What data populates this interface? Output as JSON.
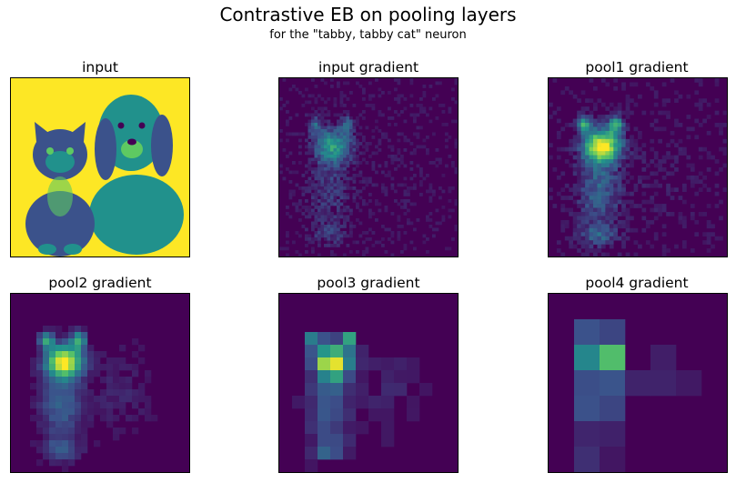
{
  "figure": {
    "title": "Contrastive EB on pooling layers",
    "subtitle": "for the \"tabby, tabby cat\" neuron"
  },
  "panels": [
    {
      "label": "input",
      "kind": "photo"
    },
    {
      "label": "input gradient",
      "kind": "heatmap",
      "level": 0
    },
    {
      "label": "pool1 gradient",
      "kind": "heatmap",
      "level": 1
    },
    {
      "label": "pool2 gradient",
      "kind": "heatmap",
      "level": 2
    },
    {
      "label": "pool3 gradient",
      "kind": "heatmap",
      "level": 3
    },
    {
      "label": "pool4 gradient",
      "kind": "heatmap",
      "level": 4
    }
  ],
  "colormap": {
    "name": "viridis",
    "background": "#440154",
    "stops": [
      "#440154",
      "#3b528b",
      "#21918c",
      "#5ec962",
      "#fde725"
    ]
  }
}
